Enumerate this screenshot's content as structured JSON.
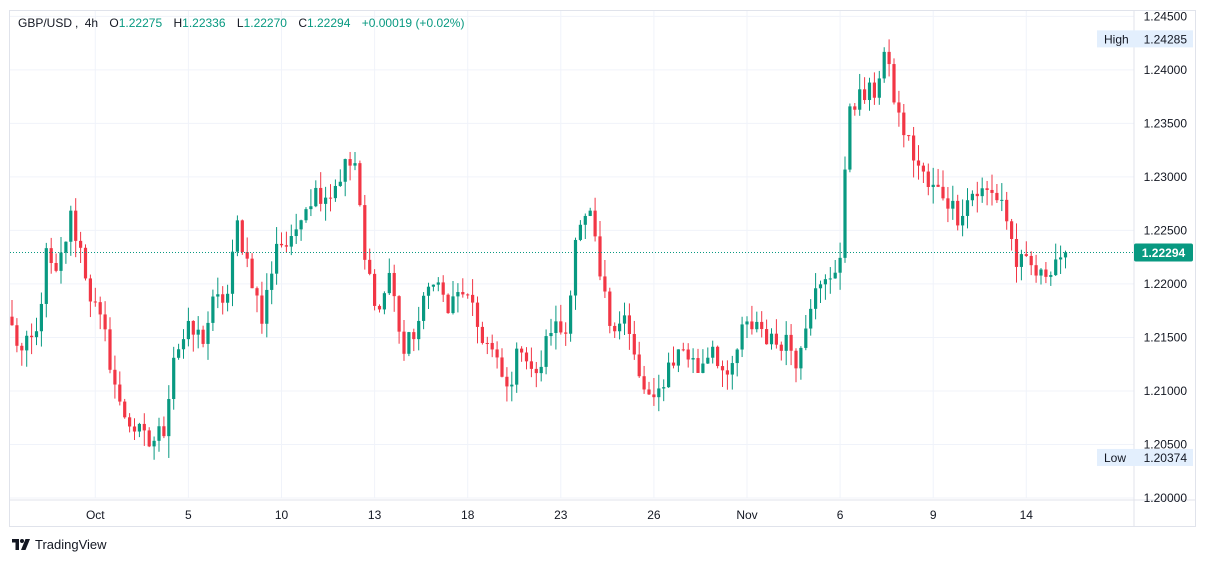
{
  "legend": {
    "symbol": "GBP/USD",
    "interval": "4h",
    "open_label": "O",
    "open": "1.22275",
    "high_label": "H",
    "high": "1.22336",
    "low_label": "L",
    "low": "1.22270",
    "close_label": "C",
    "close": "1.22294",
    "change": "+0.00019 (+0.02%)"
  },
  "brand": {
    "name": "TradingView",
    "icon": "tradingview-logo-icon"
  },
  "colors": {
    "up": "#089981",
    "down": "#f23645",
    "grid": "#f0f3fa",
    "axis_text": "#131722",
    "price_line": "#089981",
    "label_bg_hilo": "#e3effd"
  },
  "chart_data": {
    "type": "candlestick",
    "title": "GBP/USD, 4h",
    "ylim": [
      1.2,
      1.2455
    ],
    "y_ticks": [
      "1.24500",
      "1.24000",
      "1.23500",
      "1.23000",
      "1.22500",
      "1.22000",
      "1.21500",
      "1.21000",
      "1.20500",
      "1.20000"
    ],
    "y_tick_values": [
      1.245,
      1.24,
      1.235,
      1.23,
      1.225,
      1.22,
      1.215,
      1.21,
      1.205,
      1.2
    ],
    "x_ticks": [
      {
        "label": "Oct",
        "index": 17
      },
      {
        "label": "5",
        "index": 36
      },
      {
        "label": "10",
        "index": 55
      },
      {
        "label": "13",
        "index": 74
      },
      {
        "label": "18",
        "index": 93
      },
      {
        "label": "23",
        "index": 112
      },
      {
        "label": "26",
        "index": 131
      },
      {
        "label": "Nov",
        "index": 150
      },
      {
        "label": "6",
        "index": 169
      },
      {
        "label": "9",
        "index": 188
      },
      {
        "label": "14",
        "index": 207
      }
    ],
    "current_price": 1.22294,
    "current_price_label": "1.22294",
    "high_label": "High",
    "high_value": "1.24285",
    "high_price": 1.24285,
    "low_label": "Low",
    "low_value": "1.20374",
    "low_price": 1.20374,
    "anchors": [
      [
        0,
        1.2158
      ],
      [
        2,
        1.2135
      ],
      [
        5,
        1.2152
      ],
      [
        7,
        1.2225
      ],
      [
        9,
        1.2205
      ],
      [
        12,
        1.2262
      ],
      [
        14,
        1.2232
      ],
      [
        16,
        1.219
      ],
      [
        19,
        1.215
      ],
      [
        22,
        1.2085
      ],
      [
        25,
        1.2065
      ],
      [
        28,
        1.205
      ],
      [
        31,
        1.2065
      ],
      [
        33,
        1.2135
      ],
      [
        36,
        1.2155
      ],
      [
        39,
        1.215
      ],
      [
        41,
        1.218
      ],
      [
        44,
        1.219
      ],
      [
        46,
        1.2255
      ],
      [
        49,
        1.2205
      ],
      [
        51,
        1.2165
      ],
      [
        54,
        1.224
      ],
      [
        57,
        1.2235
      ],
      [
        59,
        1.227
      ],
      [
        62,
        1.2286
      ],
      [
        65,
        1.2285
      ],
      [
        68,
        1.231
      ],
      [
        70,
        1.2312
      ],
      [
        72,
        1.222
      ],
      [
        75,
        1.2175
      ],
      [
        77,
        1.221
      ],
      [
        80,
        1.2135
      ],
      [
        83,
        1.2165
      ],
      [
        86,
        1.221
      ],
      [
        89,
        1.2175
      ],
      [
        92,
        1.2195
      ],
      [
        95,
        1.216
      ],
      [
        98,
        1.2135
      ],
      [
        101,
        1.21
      ],
      [
        104,
        1.2145
      ],
      [
        107,
        1.211
      ],
      [
        110,
        1.216
      ],
      [
        113,
        1.2155
      ],
      [
        115,
        1.2245
      ],
      [
        118,
        1.2262
      ],
      [
        120,
        1.2205
      ],
      [
        122,
        1.2165
      ],
      [
        125,
        1.217
      ],
      [
        128,
        1.211
      ],
      [
        131,
        1.2085
      ],
      [
        134,
        1.2125
      ],
      [
        137,
        1.214
      ],
      [
        140,
        1.212
      ],
      [
        143,
        1.2145
      ],
      [
        146,
        1.2105
      ],
      [
        149,
        1.2155
      ],
      [
        152,
        1.2165
      ],
      [
        155,
        1.2145
      ],
      [
        158,
        1.215
      ],
      [
        160,
        1.213
      ],
      [
        163,
        1.2185
      ],
      [
        166,
        1.22
      ],
      [
        169,
        1.2225
      ],
      [
        171,
        1.237
      ],
      [
        174,
        1.2375
      ],
      [
        176,
        1.238
      ],
      [
        178,
        1.2415
      ],
      [
        181,
        1.2355
      ],
      [
        184,
        1.232
      ],
      [
        187,
        1.229
      ],
      [
        190,
        1.2285
      ],
      [
        193,
        1.2265
      ],
      [
        196,
        1.2285
      ],
      [
        199,
        1.2285
      ],
      [
        202,
        1.228
      ],
      [
        205,
        1.222
      ],
      [
        208,
        1.2215
      ],
      [
        210,
        1.2205
      ],
      [
        213,
        1.2225
      ],
      [
        215,
        1.2229
      ]
    ]
  }
}
